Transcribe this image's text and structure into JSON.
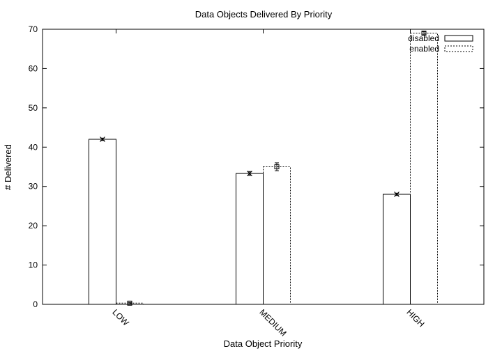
{
  "chart_data": {
    "type": "bar",
    "title": "Data Objects Delivered By Priority",
    "xlabel": "Data Object Priority",
    "ylabel": "# Delivered",
    "categories": [
      "LOW",
      "MEDIUM",
      "HIGH"
    ],
    "ylim": [
      0,
      70
    ],
    "yticks": [
      0,
      10,
      20,
      30,
      40,
      50,
      60,
      70
    ],
    "grid": false,
    "legend_position": "top-right",
    "series": [
      {
        "name": "disabled",
        "values": [
          42,
          33.3,
          28
        ],
        "errors": [
          0.3,
          0.5,
          0.3
        ],
        "marker": "x",
        "style": "solid"
      },
      {
        "name": "enabled",
        "values": [
          0.3,
          35,
          69
        ],
        "errors": [
          0.2,
          1.0,
          0.4
        ],
        "marker": "square",
        "style": "dotted"
      }
    ]
  }
}
